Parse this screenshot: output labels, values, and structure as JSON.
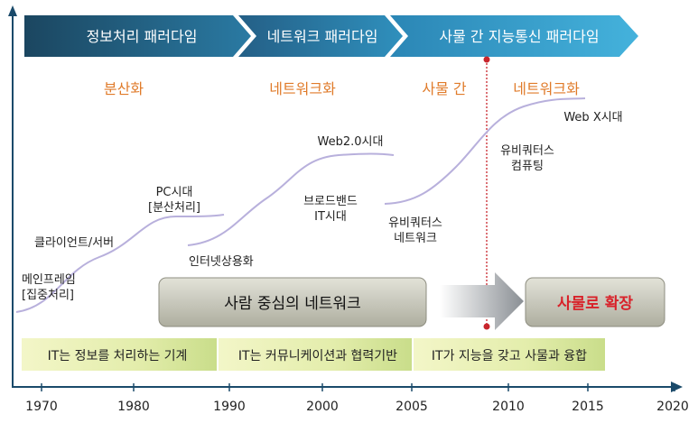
{
  "paradigms": [
    {
      "label": "정보처리 패러다임",
      "sub": "분산화"
    },
    {
      "label": "네트워크 패러다임",
      "sub": "네트워크화"
    },
    {
      "label": "사물 간 지능통신 패러다임",
      "sub_a": "사물 간",
      "sub_b": "네트워크화"
    }
  ],
  "stages": [
    {
      "label": "메인프레임",
      "label2": "[집중처리]"
    },
    {
      "label": "클라이언트/서버"
    },
    {
      "label": "PC시대",
      "label2": "[분산처리]"
    },
    {
      "label": "인터넷상용화"
    },
    {
      "label": "브로드밴드",
      "label2": "IT시대"
    },
    {
      "label": "Web2.0시대"
    },
    {
      "label": "유비쿼터스",
      "label2": "네트워크"
    },
    {
      "label": "유비쿼터스",
      "label2": "컴퓨팅"
    },
    {
      "label": "Web X시대"
    }
  ],
  "banners": {
    "human_network": "사람 중심의 네트워크",
    "expansion": "사물로 확장"
  },
  "eras": [
    "IT는 정보를 처리하는 기계",
    "IT는 커뮤니케이션과 협력기반",
    "IT가 지능을 갖고 사물과 융합"
  ],
  "timeline": {
    "ticks": [
      "1970",
      "1980",
      "1990",
      "2000",
      "2005",
      "2010",
      "2015",
      "2020"
    ]
  },
  "colors": {
    "arrow_dark": "#1c5070",
    "arrow_light": "#2f93bf",
    "orange": "#e07b2a",
    "curve": "#b8b0dc",
    "banner_gray": "#c9c9bf",
    "expansion_red": "#d8222a",
    "axis": "#1a4a6a",
    "dotline": "#c8252c"
  }
}
